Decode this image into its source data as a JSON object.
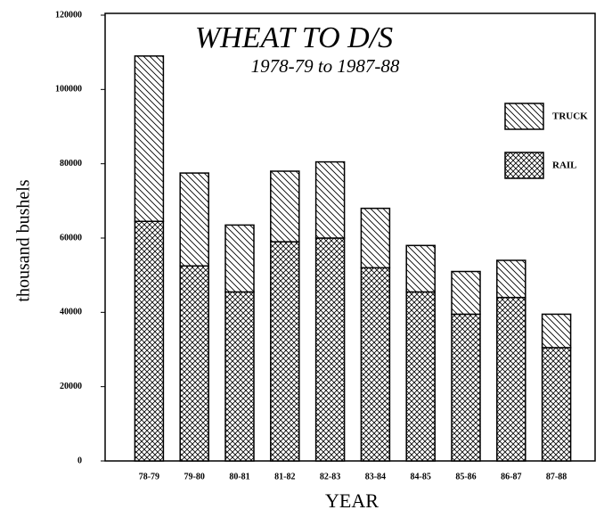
{
  "chart_data": {
    "type": "stacked_bar",
    "title": "WHEAT TO D/S",
    "subtitle": "1978-79 to 1987-88",
    "ylabel": "thousand bushels",
    "xlabel": "YEAR",
    "categories": [
      "78-79",
      "79-80",
      "80-81",
      "81-82",
      "82-83",
      "83-84",
      "84-85",
      "85-86",
      "86-87",
      "87-88"
    ],
    "series": [
      {
        "name": "RAIL",
        "color": "#000000",
        "pattern": "crosshatch",
        "values": [
          64500,
          52500,
          45500,
          59000,
          60000,
          52000,
          45500,
          39500,
          44000,
          30500
        ]
      },
      {
        "name": "TRUCK",
        "color": "#000000",
        "pattern": "diagonal",
        "values": [
          44500,
          25000,
          18000,
          19000,
          20500,
          16000,
          12500,
          11500,
          10000,
          9000
        ]
      }
    ],
    "ylim": [
      0,
      120000
    ],
    "yticks": [
      0,
      20000,
      40000,
      60000,
      80000,
      100000,
      120000
    ],
    "grid": false,
    "legend": "upper right"
  }
}
